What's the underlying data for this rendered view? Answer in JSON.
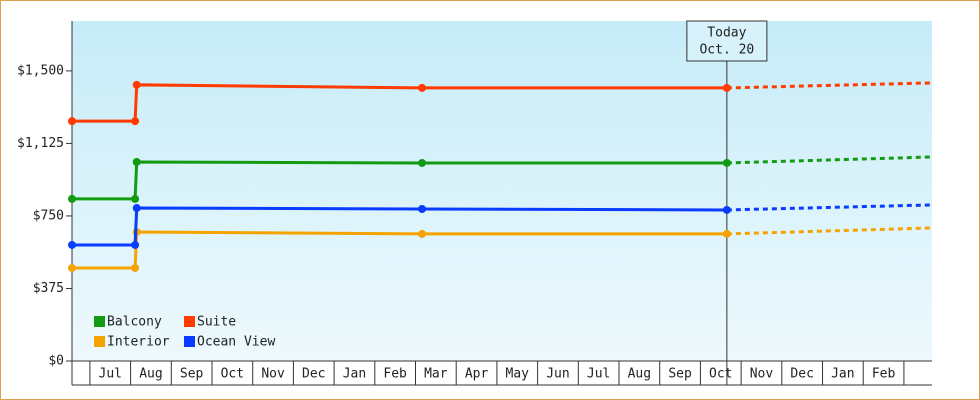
{
  "chart_data": {
    "type": "line",
    "annotation": {
      "title": "Today",
      "date": "Oct. 20"
    },
    "categories": [
      "Jul",
      "Aug",
      "Sep",
      "Oct",
      "Nov",
      "Dec",
      "Jan",
      "Feb",
      "Mar",
      "Apr",
      "May",
      "Jun",
      "Jul",
      "Aug",
      "Sep",
      "Oct",
      "Nov",
      "Dec",
      "Jan",
      "Feb"
    ],
    "xlim": [
      -0.44,
      20.69
    ],
    "today_x": 15.65,
    "x": [
      -0.44,
      1.11,
      1.15,
      8.16,
      15.65,
      20.69
    ],
    "ylim": [
      0,
      1758
    ],
    "yticks": [
      {
        "value": 0,
        "label": "$0"
      },
      {
        "value": 375,
        "label": "$375"
      },
      {
        "value": 750,
        "label": "$750"
      },
      {
        "value": 1125,
        "label": "$1,125"
      },
      {
        "value": 1500,
        "label": "$1,500"
      }
    ],
    "series": [
      {
        "name": "Balcony",
        "color": "#129a12",
        "values": [
          838,
          838,
          1029,
          1024,
          1024,
          1055
        ]
      },
      {
        "name": "Suite",
        "color": "#ff3b00",
        "values": [
          1240,
          1240,
          1428,
          1412,
          1412,
          1438
        ]
      },
      {
        "name": "Interior",
        "color": "#f5a300",
        "values": [
          481,
          481,
          667,
          657,
          657,
          688
        ]
      },
      {
        "name": "Ocean View",
        "color": "#0a3cff",
        "values": [
          600,
          600,
          791,
          786,
          781,
          807
        ]
      }
    ]
  }
}
